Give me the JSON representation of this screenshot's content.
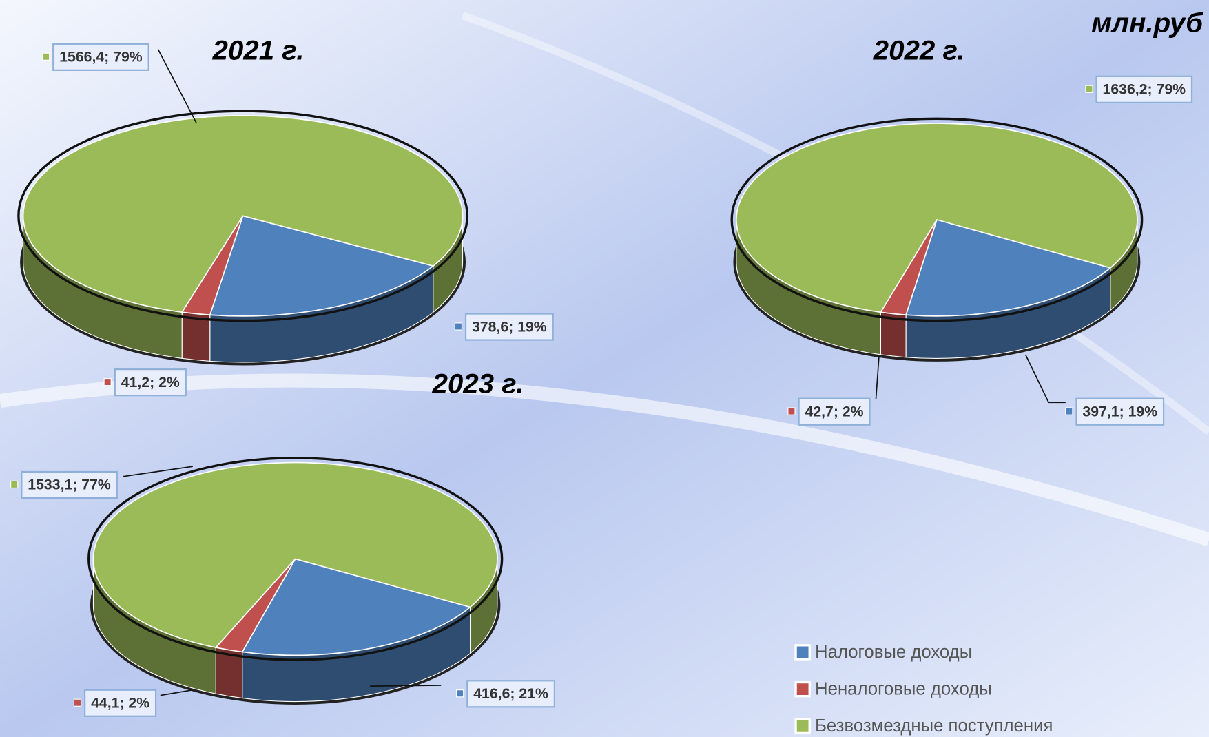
{
  "unit_label": "млн.руб",
  "chart_data": [
    {
      "type": "pie",
      "title": "2021 г.",
      "categories": [
        "Налоговые доходы",
        "Неналоговые доходы",
        "Безвозмездные поступления"
      ],
      "colors": [
        "#4f81bd",
        "#c0504d",
        "#9bbb59"
      ],
      "values": [
        378.6,
        41.2,
        1566.4
      ],
      "value_labels": [
        "378,6; 19%",
        "41,2; 2%",
        "1566,4; 79%"
      ]
    },
    {
      "type": "pie",
      "title": "2022 г.",
      "categories": [
        "Налоговые доходы",
        "Неналоговые доходы",
        "Безвозмездные поступления"
      ],
      "colors": [
        "#4f81bd",
        "#c0504d",
        "#9bbb59"
      ],
      "values": [
        397.1,
        42.7,
        1636.2
      ],
      "value_labels": [
        "397,1; 19%",
        "42,7; 2%",
        "1636,2; 79%"
      ]
    },
    {
      "type": "pie",
      "title": "2023 г.",
      "categories": [
        "Налоговые доходы",
        "Неналоговые доходы",
        "Безвозмездные поступления"
      ],
      "colors": [
        "#4f81bd",
        "#c0504d",
        "#9bbb59"
      ],
      "values": [
        416.6,
        44.1,
        1533.1
      ],
      "value_labels": [
        "416,6; 21%",
        "44,1; 2%",
        "1533,1; 77%"
      ]
    }
  ]
}
